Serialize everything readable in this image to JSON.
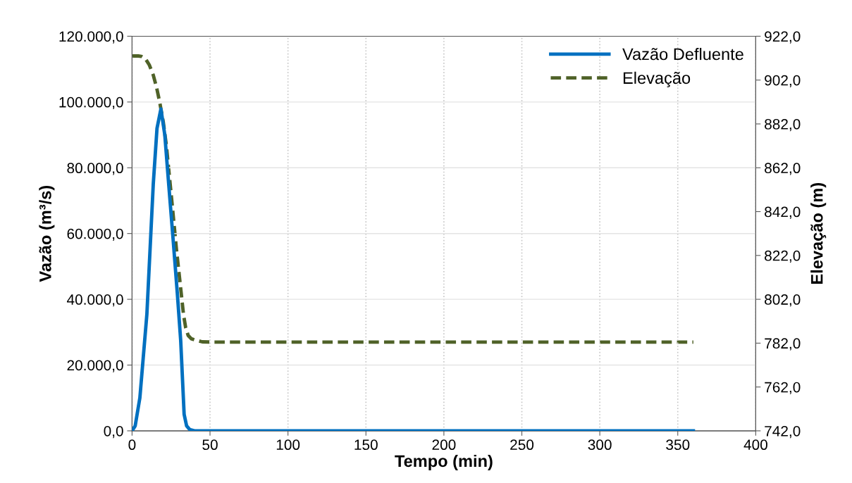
{
  "chart_data": {
    "type": "line",
    "xlabel": "Tempo (min)",
    "ylabel": "Vazão (m³/s)",
    "y2label": "Elevação (m)",
    "xlim": [
      0,
      400
    ],
    "xticks": [
      0,
      50,
      100,
      150,
      200,
      250,
      300,
      350,
      400
    ],
    "ylim": [
      0,
      120000
    ],
    "yticks": [
      {
        "value": 0,
        "label": "0,0"
      },
      {
        "value": 20000,
        "label": "20.000,0"
      },
      {
        "value": 40000,
        "label": "40.000,0"
      },
      {
        "value": 60000,
        "label": "60.000,0"
      },
      {
        "value": 80000,
        "label": "80.000,0"
      },
      {
        "value": 100000,
        "label": "100.000,0"
      },
      {
        "value": 120000,
        "label": "120.000,0"
      }
    ],
    "y2lim": [
      742,
      922
    ],
    "y2ticks": [
      {
        "value": 742,
        "label": "742,0"
      },
      {
        "value": 762,
        "label": "762,0"
      },
      {
        "value": 782,
        "label": "782,0"
      },
      {
        "value": 802,
        "label": "802,0"
      },
      {
        "value": 822,
        "label": "822,0"
      },
      {
        "value": 842,
        "label": "842,0"
      },
      {
        "value": 862,
        "label": "862,0"
      },
      {
        "value": 882,
        "label": "882,0"
      },
      {
        "value": 902,
        "label": "902,0"
      },
      {
        "value": 922,
        "label": "922,0"
      }
    ],
    "grid": true,
    "legend": "top right",
    "marker": "none",
    "series": [
      {
        "name": "Vazão Defluente",
        "color": "#0070c0",
        "line_style": "solid",
        "x": [
          0,
          2,
          5,
          9.5,
          13.6,
          16,
          18.5,
          21,
          23.5,
          26.2,
          29,
          31.2,
          33.4,
          35,
          37,
          40,
          50,
          100,
          200,
          300,
          360
        ],
        "values": [
          0,
          1500,
          10000,
          35400,
          75000,
          92000,
          97900,
          90000,
          75000,
          59000,
          42000,
          27400,
          5000,
          1500,
          400,
          0,
          0,
          0,
          0,
          0,
          0
        ]
      },
      {
        "name": "Elevação",
        "color": "#4f6228",
        "line_style": "dashed",
        "axis": "y2",
        "x": [
          0,
          4,
          6,
          8.6,
          11,
          13.6,
          15.6,
          17.6,
          20,
          22,
          25.3,
          28.5,
          31.2,
          33,
          34.4,
          36,
          38,
          40.2,
          45,
          50,
          100,
          200,
          300,
          360
        ],
        "values": [
          913,
          913,
          912.8,
          911.7,
          909,
          904.3,
          899,
          892.4,
          883,
          872.2,
          848.4,
          824.6,
          806.9,
          795,
          789,
          785.5,
          784,
          783.5,
          782.6,
          782.5,
          782.5,
          782.5,
          782.5,
          782.5
        ]
      }
    ]
  }
}
